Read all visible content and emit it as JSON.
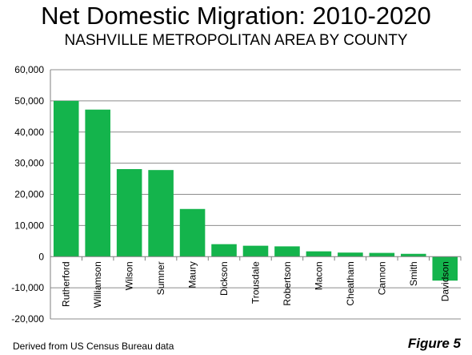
{
  "page": {
    "title": "Net Domestic Migration: 2010-2020",
    "subtitle": "NASHVILLE METROPOLITAN AREA BY COUNTY",
    "source": "Derived from US Census Bureau data",
    "figure_label": "Figure 5"
  },
  "colors": {
    "bar": "#14b44c",
    "grid": "#8c8c8c",
    "axis": "#7f7f7f"
  },
  "chart_data": {
    "type": "bar",
    "title": "Net Domestic Migration: 2010-2020",
    "subtitle": "NASHVILLE METROPOLITAN AREA BY COUNTY",
    "xlabel": "",
    "ylabel": "",
    "categories": [
      "Rutherford",
      "Williamson",
      "Wilson",
      "Sumner",
      "Maury",
      "Dickson",
      "Trousdale",
      "Robertson",
      "Macon",
      "Cheatham",
      "Cannon",
      "Smith",
      "Davidson"
    ],
    "values": [
      50000,
      47200,
      28100,
      27800,
      15300,
      4000,
      3500,
      3300,
      1700,
      1300,
      1200,
      900,
      -7700
    ],
    "ylim": [
      -20000,
      60000
    ],
    "yticks": [
      -20000,
      -10000,
      0,
      10000,
      20000,
      30000,
      40000,
      50000,
      60000
    ],
    "ytick_labels": [
      "-20,000",
      "-10,000",
      "0",
      "10,000",
      "20,000",
      "30,000",
      "40,000",
      "50,000",
      "60,000"
    ],
    "grid": true,
    "legend": "none"
  }
}
